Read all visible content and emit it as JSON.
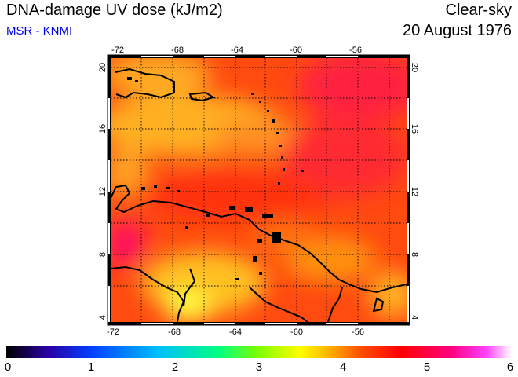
{
  "header": {
    "title": "DNA-damage UV dose (kJ/m2)",
    "source": "MSR - KNMI",
    "scenario": "Clear-sky",
    "date": "20 August 1976"
  },
  "map": {
    "lon_range": [
      -72,
      -53
    ],
    "lat_range": [
      3.5,
      20.5
    ],
    "lon_ticks": [
      "-72",
      "-68",
      "-64",
      "-60",
      "-56"
    ],
    "lat_ticks": [
      "4",
      "8",
      "12",
      "16",
      "20"
    ],
    "grid": true
  },
  "colorbar": {
    "labels": [
      "0",
      "1",
      "2",
      "3",
      "4",
      "5",
      "6"
    ],
    "range": [
      0,
      6
    ],
    "colors": [
      "#000000",
      "#2a00a0",
      "#0040ff",
      "#00c0ff",
      "#00ff80",
      "#80ff00",
      "#ffff00",
      "#ffb000",
      "#ff5000",
      "#ff0000",
      "#ff0080",
      "#ff40ff",
      "#ffffff"
    ]
  }
}
